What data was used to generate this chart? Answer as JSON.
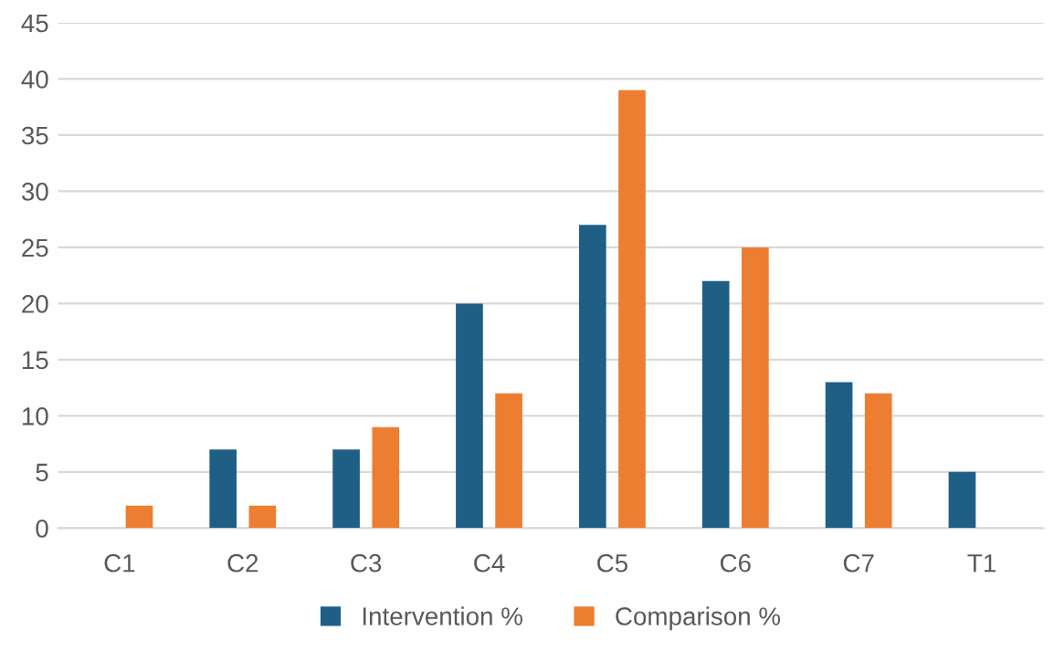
{
  "chart_data": {
    "type": "bar",
    "categories": [
      "C1",
      "C2",
      "C3",
      "C4",
      "C5",
      "C6",
      "C7",
      "T1"
    ],
    "series": [
      {
        "name": "Intervention %",
        "color": "#1f5f86",
        "values": [
          null,
          7,
          7,
          20,
          27,
          22,
          13,
          5
        ]
      },
      {
        "name": "Comparison %",
        "color": "#ed7d31",
        "values": [
          2,
          2,
          9,
          12,
          39,
          25,
          12,
          null
        ]
      }
    ],
    "ylim": [
      0,
      45
    ],
    "yticks": [
      0,
      5,
      10,
      15,
      20,
      25,
      30,
      35,
      40,
      45
    ],
    "grid": "y",
    "legend": "bottom"
  }
}
